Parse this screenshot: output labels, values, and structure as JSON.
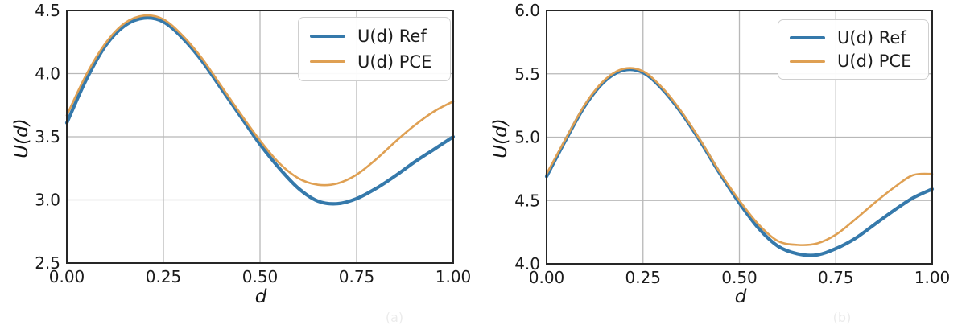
{
  "figure": {
    "background": "#ffffff",
    "captions": [
      {
        "label": "(a)"
      },
      {
        "label": "(b)"
      }
    ]
  },
  "chart_data": [
    {
      "type": "line",
      "title": "",
      "xlabel": "d",
      "ylabel": "U(d)",
      "xlim": [
        0,
        1
      ],
      "ylim": [
        2.5,
        4.5
      ],
      "xtick_values": [
        0,
        0.25,
        0.5,
        0.75,
        1.0
      ],
      "xtick_labels": [
        "0.00",
        "0.25",
        "0.50",
        "0.75",
        "1.00"
      ],
      "ytick_values": [
        2.5,
        3.0,
        3.5,
        4.0,
        4.5
      ],
      "ytick_labels": [
        "2.5",
        "3.0",
        "3.5",
        "4.0",
        "4.5"
      ],
      "grid": true,
      "legend_position": "upper right",
      "series": [
        {
          "name": "U(d) Ref",
          "color": "#3579ab",
          "line_width": 4.2,
          "x": [
            0,
            0.05,
            0.1,
            0.15,
            0.2,
            0.25,
            0.3,
            0.35,
            0.4,
            0.45,
            0.5,
            0.55,
            0.6,
            0.65,
            0.7,
            0.75,
            0.8,
            0.85,
            0.9,
            0.95,
            1.0
          ],
          "y": [
            3.61,
            3.95,
            4.22,
            4.38,
            4.44,
            4.41,
            4.28,
            4.1,
            3.88,
            3.66,
            3.44,
            3.25,
            3.09,
            2.99,
            2.97,
            3.01,
            3.09,
            3.19,
            3.3,
            3.4,
            3.5
          ]
        },
        {
          "name": "U(d) PCE",
          "color": "#dfa053",
          "line_width": 2.6,
          "x": [
            0,
            0.05,
            0.1,
            0.15,
            0.2,
            0.25,
            0.3,
            0.35,
            0.4,
            0.45,
            0.5,
            0.55,
            0.6,
            0.65,
            0.7,
            0.75,
            0.8,
            0.85,
            0.9,
            0.95,
            1.0
          ],
          "y": [
            3.67,
            3.99,
            4.24,
            4.4,
            4.46,
            4.43,
            4.3,
            4.12,
            3.9,
            3.68,
            3.47,
            3.29,
            3.17,
            3.12,
            3.13,
            3.2,
            3.32,
            3.46,
            3.59,
            3.7,
            3.78
          ]
        }
      ]
    },
    {
      "type": "line",
      "title": "",
      "xlabel": "d",
      "ylabel": "U(d)",
      "xlim": [
        0,
        1
      ],
      "ylim": [
        4.0,
        6.0
      ],
      "xtick_values": [
        0,
        0.25,
        0.5,
        0.75,
        1.0
      ],
      "xtick_labels": [
        "0.00",
        "0.25",
        "0.50",
        "0.75",
        "1.00"
      ],
      "ytick_values": [
        4.0,
        4.5,
        5.0,
        5.5,
        6.0
      ],
      "ytick_labels": [
        "4.0",
        "4.5",
        "5.0",
        "5.5",
        "6.0"
      ],
      "grid": true,
      "legend_position": "upper right",
      "series": [
        {
          "name": "U(d) Ref",
          "color": "#3579ab",
          "line_width": 4.2,
          "x": [
            0,
            0.05,
            0.1,
            0.15,
            0.2,
            0.25,
            0.3,
            0.35,
            0.4,
            0.45,
            0.5,
            0.55,
            0.6,
            0.65,
            0.7,
            0.75,
            0.8,
            0.85,
            0.9,
            0.95,
            1.0
          ],
          "y": [
            4.69,
            4.98,
            5.25,
            5.44,
            5.53,
            5.51,
            5.38,
            5.19,
            4.96,
            4.71,
            4.48,
            4.28,
            4.14,
            4.08,
            4.07,
            4.12,
            4.2,
            4.31,
            4.42,
            4.52,
            4.59
          ]
        },
        {
          "name": "U(d) PCE",
          "color": "#dfa053",
          "line_width": 2.6,
          "x": [
            0,
            0.05,
            0.1,
            0.15,
            0.2,
            0.25,
            0.3,
            0.35,
            0.4,
            0.45,
            0.5,
            0.55,
            0.6,
            0.65,
            0.7,
            0.75,
            0.8,
            0.85,
            0.9,
            0.95,
            1.0
          ],
          "y": [
            4.71,
            4.99,
            5.26,
            5.45,
            5.54,
            5.52,
            5.39,
            5.2,
            4.97,
            4.72,
            4.5,
            4.31,
            4.18,
            4.15,
            4.16,
            4.23,
            4.35,
            4.48,
            4.6,
            4.7,
            4.71
          ]
        }
      ]
    }
  ],
  "style": {
    "grid_color": "#b8b8b8",
    "spine_color": "#262626",
    "tick_text_color": "#1b1b1b"
  }
}
